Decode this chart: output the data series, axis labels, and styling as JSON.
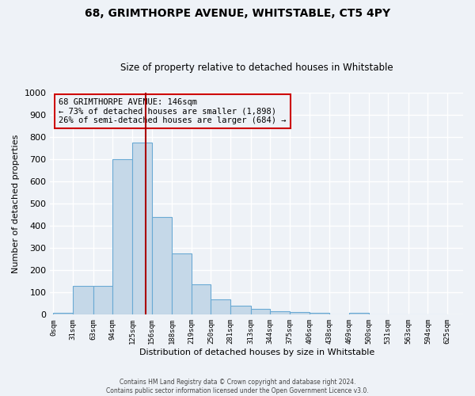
{
  "title": "68, GRIMTHORPE AVENUE, WHITSTABLE, CT5 4PY",
  "subtitle": "Size of property relative to detached houses in Whitstable",
  "xlabel": "Distribution of detached houses by size in Whitstable",
  "ylabel": "Number of detached properties",
  "bar_left_edges": [
    0,
    31,
    63,
    94,
    125,
    156,
    188,
    219,
    250,
    281,
    313,
    344,
    375,
    406,
    438,
    469,
    500,
    531,
    563,
    594
  ],
  "bar_widths": [
    31,
    32,
    31,
    31,
    31,
    32,
    31,
    31,
    31,
    32,
    31,
    31,
    31,
    32,
    31,
    31,
    31,
    32,
    31,
    31
  ],
  "bar_heights": [
    8,
    128,
    128,
    700,
    775,
    440,
    275,
    135,
    68,
    40,
    25,
    15,
    12,
    8,
    0,
    10,
    0,
    0,
    0,
    0
  ],
  "bar_color": "#c5d8e8",
  "bar_edgecolor": "#6aaad4",
  "ylim": [
    0,
    1000
  ],
  "xlim": [
    -5,
    650
  ],
  "xtick_positions": [
    0,
    31,
    63,
    94,
    125,
    156,
    188,
    219,
    250,
    281,
    313,
    344,
    375,
    406,
    438,
    469,
    500,
    531,
    563,
    594,
    625
  ],
  "xtick_labels": [
    "0sqm",
    "31sqm",
    "63sqm",
    "94sqm",
    "125sqm",
    "156sqm",
    "188sqm",
    "219sqm",
    "250sqm",
    "281sqm",
    "313sqm",
    "344sqm",
    "375sqm",
    "406sqm",
    "438sqm",
    "469sqm",
    "500sqm",
    "531sqm",
    "563sqm",
    "594sqm",
    "625sqm"
  ],
  "ytick_positions": [
    0,
    100,
    200,
    300,
    400,
    500,
    600,
    700,
    800,
    900,
    1000
  ],
  "property_line_x": 146,
  "property_line_color": "#aa0000",
  "annotation_line1": "68 GRIMTHORPE AVENUE: 146sqm",
  "annotation_line2": "← 73% of detached houses are smaller (1,898)",
  "annotation_line3": "26% of semi-detached houses are larger (684) →",
  "annotation_box_color": "#cc0000",
  "bg_color": "#eef2f7",
  "grid_color": "#ffffff",
  "footer_line1": "Contains HM Land Registry data © Crown copyright and database right 2024.",
  "footer_line2": "Contains public sector information licensed under the Open Government Licence v3.0."
}
